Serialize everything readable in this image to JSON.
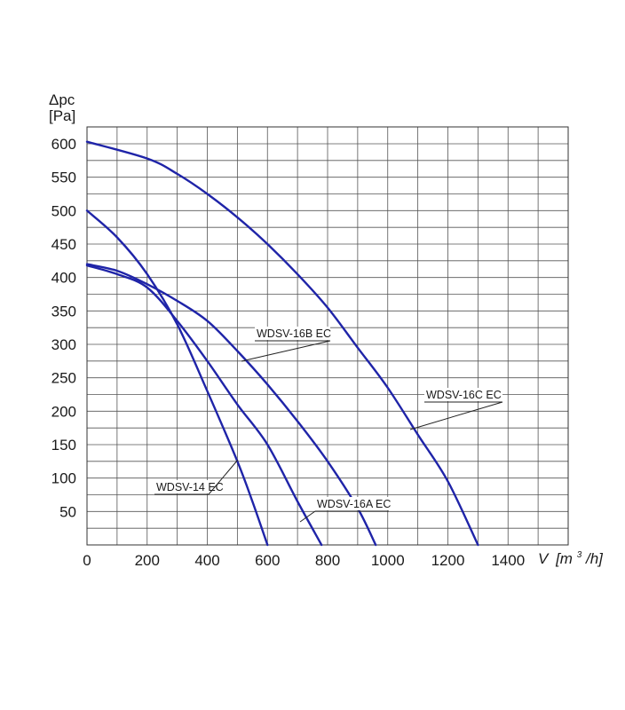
{
  "chart_data": {
    "type": "line",
    "ylabel_line1": "Δpc",
    "ylabel_line2": "[Pa]",
    "xlabel_prefix": "V",
    "xlabel_unit_a": "[m",
    "xlabel_unit_sup": "3",
    "xlabel_unit_b": "/h]",
    "xlim": [
      0,
      1600
    ],
    "ylim": [
      0,
      600
    ],
    "x_ticks": [
      "0",
      "200",
      "400",
      "600",
      "800",
      "1000",
      "1200",
      "1400"
    ],
    "y_ticks": [
      "50",
      "100",
      "150",
      "200",
      "250",
      "300",
      "350",
      "400",
      "450",
      "500",
      "550",
      "600"
    ],
    "grid": true,
    "line_color": "#1f24a8",
    "series": [
      {
        "name": "WDSV-14 EC",
        "x": [
          0,
          100,
          200,
          300,
          400,
          500,
          550,
          600
        ],
        "y": [
          500,
          460,
          405,
          330,
          230,
          125,
          65,
          0
        ]
      },
      {
        "name": "WDSV-16A EC",
        "x": [
          0,
          100,
          200,
          300,
          400,
          500,
          600,
          700,
          780
        ],
        "y": [
          418,
          405,
          385,
          335,
          275,
          210,
          150,
          65,
          0
        ]
      },
      {
        "name": "WDSV-16B EC",
        "x": [
          0,
          100,
          200,
          300,
          400,
          500,
          600,
          700,
          800,
          900,
          960
        ],
        "y": [
          420,
          410,
          390,
          365,
          335,
          290,
          240,
          185,
          125,
          55,
          0
        ]
      },
      {
        "name": "WDSV-16C EC",
        "x": [
          0,
          200,
          300,
          400,
          500,
          600,
          700,
          800,
          900,
          1000,
          1100,
          1200,
          1300
        ],
        "y": [
          603,
          578,
          555,
          525,
          490,
          450,
          405,
          355,
          295,
          235,
          165,
          95,
          0
        ]
      }
    ]
  }
}
